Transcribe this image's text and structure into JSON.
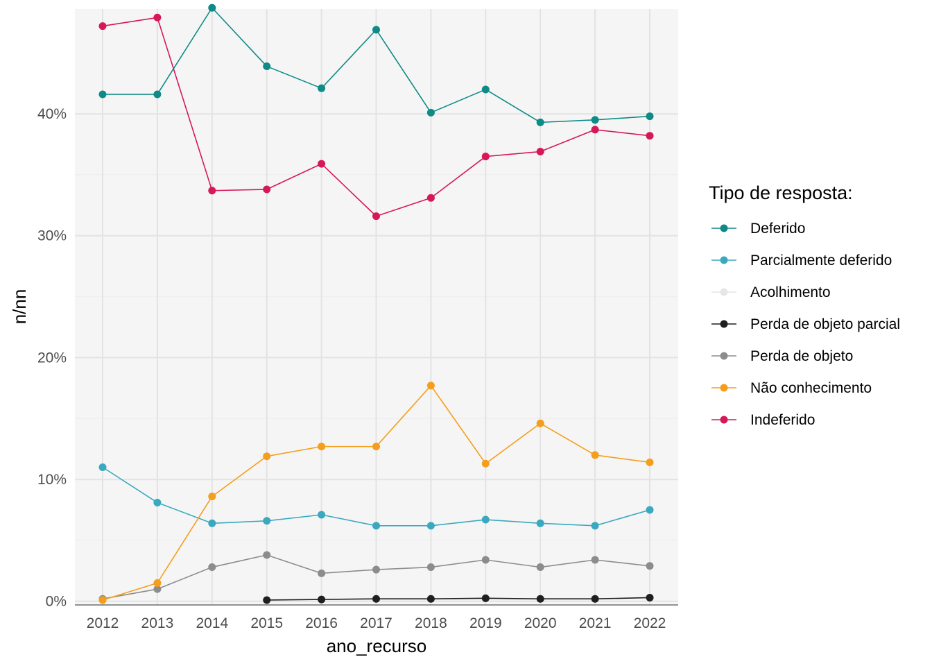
{
  "chart_data": {
    "type": "line",
    "xlabel": "ano_recurso",
    "ylabel": "n/nn",
    "x": [
      2012,
      2013,
      2014,
      2015,
      2016,
      2017,
      2018,
      2019,
      2020,
      2021,
      2022
    ],
    "x_tick_labels": [
      "2012",
      "2013",
      "2014",
      "2015",
      "2016",
      "2017",
      "2018",
      "2019",
      "2020",
      "2021",
      "2022"
    ],
    "y_ticks": [
      0,
      10,
      20,
      30,
      40
    ],
    "y_tick_labels": [
      "0%",
      "10%",
      "20%",
      "30%",
      "40%"
    ],
    "ylim": [
      -0.3,
      48.6
    ],
    "y_unit": "percent",
    "grid": true,
    "panel_background": "#f5f5f5",
    "legend": {
      "title": "Tipo de resposta:",
      "position": "right"
    },
    "series": [
      {
        "name": "Deferido",
        "color": "#0e8a87",
        "values": [
          41.6,
          41.6,
          48.7,
          43.9,
          42.1,
          46.9,
          40.1,
          42.0,
          39.3,
          39.5,
          39.8
        ]
      },
      {
        "name": "Parcialmente deferido",
        "color": "#3aa9bf",
        "values": [
          11.0,
          8.1,
          6.4,
          6.6,
          7.1,
          6.2,
          6.2,
          6.7,
          6.4,
          6.2,
          7.5
        ]
      },
      {
        "name": "Acolhimento",
        "color": "#e6e6e6",
        "values": [
          null,
          null,
          null,
          null,
          null,
          null,
          null,
          null,
          null,
          null,
          null
        ]
      },
      {
        "name": "Perda de objeto parcial",
        "color": "#1f1f1f",
        "values": [
          null,
          null,
          null,
          0.1,
          0.15,
          0.2,
          0.2,
          0.25,
          0.2,
          0.2,
          0.3
        ]
      },
      {
        "name": "Perda de objeto",
        "color": "#8c8c8c",
        "values": [
          0.2,
          1.0,
          2.8,
          3.8,
          2.3,
          2.6,
          2.8,
          3.4,
          2.8,
          3.4,
          2.9
        ]
      },
      {
        "name": "Não conhecimento",
        "color": "#f59e1b",
        "values": [
          0.1,
          1.5,
          8.6,
          11.9,
          12.7,
          12.7,
          17.7,
          11.3,
          14.6,
          12.0,
          11.4
        ]
      },
      {
        "name": "Indeferido",
        "color": "#d6185a",
        "values": [
          47.2,
          47.9,
          33.7,
          33.8,
          35.9,
          31.6,
          33.1,
          36.5,
          36.9,
          38.7,
          38.2
        ]
      }
    ]
  }
}
